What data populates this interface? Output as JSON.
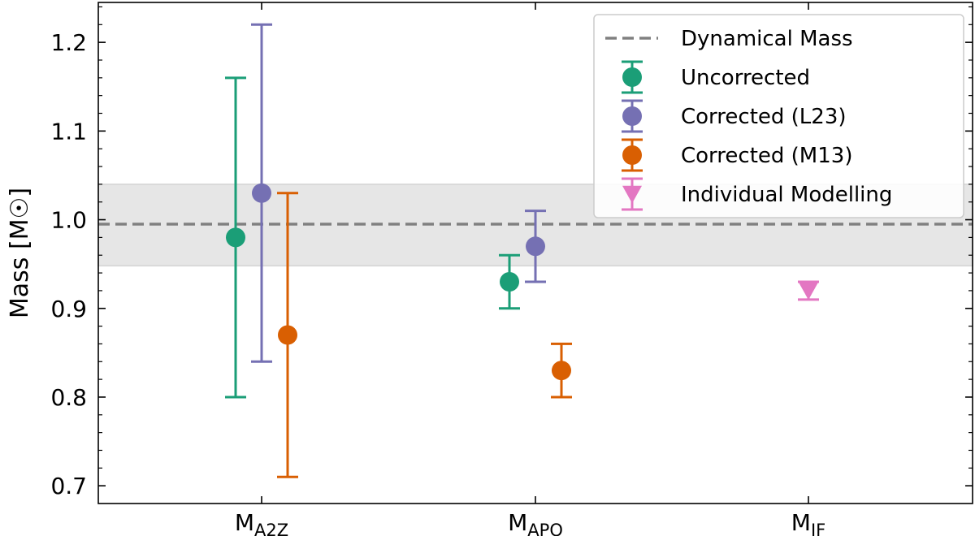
{
  "chart_data": {
    "type": "scatter",
    "ylabel": "Mass [M☉]",
    "ylim": [
      0.68,
      1.245
    ],
    "yticks": [
      "0.7",
      "0.8",
      "0.9",
      "1.0",
      "1.1",
      "1.2"
    ],
    "ytick_values": [
      0.7,
      0.8,
      0.9,
      1.0,
      1.1,
      1.2
    ],
    "categories": [
      {
        "base": "M",
        "sub": "A2Z"
      },
      {
        "base": "M",
        "sub": "APO"
      },
      {
        "base": "M",
        "sub": "IF"
      }
    ],
    "reference": {
      "name": "Dynamical Mass",
      "value": 0.995,
      "band": [
        0.948,
        1.04
      ],
      "line_color": "#808080",
      "band_color": "#e6e6e6"
    },
    "series": [
      {
        "name": "Uncorrected",
        "color": "#1b9e77",
        "marker": "circle",
        "points": [
          {
            "category": "M_A2Z",
            "y": 0.98,
            "err_low": 0.8,
            "err_high": 1.16
          },
          {
            "category": "M_APO",
            "y": 0.93,
            "err_low": 0.9,
            "err_high": 0.96
          }
        ]
      },
      {
        "name": "Corrected (L23)",
        "color": "#7570b3",
        "marker": "circle",
        "points": [
          {
            "category": "M_A2Z",
            "y": 1.03,
            "err_low": 0.84,
            "err_high": 1.22
          },
          {
            "category": "M_APO",
            "y": 0.97,
            "err_low": 0.93,
            "err_high": 1.01
          }
        ]
      },
      {
        "name": "Corrected (M13)",
        "color": "#d95f02",
        "marker": "circle",
        "points": [
          {
            "category": "M_A2Z",
            "y": 0.87,
            "err_low": 0.71,
            "err_high": 1.03
          },
          {
            "category": "M_APO",
            "y": 0.83,
            "err_low": 0.8,
            "err_high": 0.86
          }
        ]
      },
      {
        "name": "Individual Modelling",
        "color": "#e377c2",
        "marker": "triangle-down",
        "points": [
          {
            "category": "M_IF",
            "y": 0.92,
            "err_low": 0.91,
            "err_high": 0.93
          }
        ]
      }
    ],
    "legend_position": "top-right",
    "grid": false
  }
}
